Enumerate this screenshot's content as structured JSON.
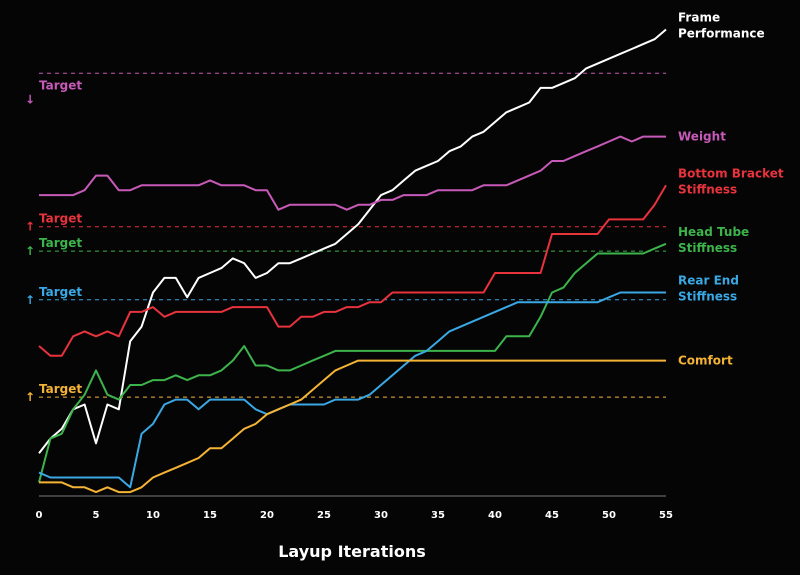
{
  "chart_data": {
    "type": "line",
    "title": "",
    "xlabel": "Layup Iterations",
    "ylabel": "",
    "xlim": [
      0,
      55
    ],
    "ylim": [
      0,
      100
    ],
    "x_ticks": [
      0,
      5,
      10,
      15,
      20,
      25,
      30,
      35,
      40,
      45,
      50,
      55
    ],
    "grid": false,
    "legend": "series labels at right end of each line",
    "targets": [
      {
        "series": "Weight",
        "label": "Target",
        "arrow": "↓",
        "y": 87,
        "color": "#c75ab8"
      },
      {
        "series": "Bottom Bracket Stiffness",
        "label": "Target",
        "arrow": "↑",
        "y": 55.5,
        "color": "#e8323c"
      },
      {
        "series": "Head Tube Stiffness",
        "label": "Target",
        "arrow": "↑",
        "y": 50.5,
        "color": "#3cb44b"
      },
      {
        "series": "Rear End Stiffness",
        "label": "Target",
        "arrow": "↑",
        "y": 40.5,
        "color": "#3aa8e4"
      },
      {
        "series": "Comfort",
        "label": "Target",
        "arrow": "↑",
        "y": 20.5,
        "color": "#f5b335"
      }
    ],
    "series": [
      {
        "name": "Frame Performance",
        "label_lines": [
          "Frame",
          "Performance"
        ],
        "color": "#ffffff",
        "values": [
          9,
          12,
          14,
          18,
          19,
          11,
          19,
          18,
          32,
          35,
          42,
          45,
          45,
          41,
          45,
          46,
          47,
          49,
          48,
          45,
          46,
          48,
          48,
          49,
          50,
          51,
          52,
          54,
          56,
          59,
          62,
          63,
          65,
          67,
          68,
          69,
          71,
          72,
          74,
          75,
          77,
          79,
          80,
          81,
          84,
          84,
          85,
          86,
          88,
          89,
          90,
          91,
          92,
          93,
          94,
          96
        ]
      },
      {
        "name": "Weight",
        "label_lines": [
          "Weight"
        ],
        "color": "#c75ab8",
        "values": [
          62,
          62,
          62,
          62,
          63,
          66,
          66,
          63,
          63,
          64,
          64,
          64,
          64,
          64,
          64,
          65,
          64,
          64,
          64,
          63,
          63,
          59,
          60,
          60,
          60,
          60,
          60,
          59,
          60,
          60,
          61,
          61,
          62,
          62,
          62,
          63,
          63,
          63,
          63,
          64,
          64,
          64,
          65,
          66,
          67,
          69,
          69,
          70,
          71,
          72,
          73,
          74,
          73,
          74,
          74,
          74
        ]
      },
      {
        "name": "Bottom Bracket Stiffness",
        "label_lines": [
          "Bottom Bracket",
          "Stiffness"
        ],
        "color": "#e8323c",
        "values": [
          31,
          29,
          29,
          33,
          34,
          33,
          34,
          33,
          38,
          38,
          39,
          37,
          38,
          38,
          38,
          38,
          38,
          39,
          39,
          39,
          39,
          35,
          35,
          37,
          37,
          38,
          38,
          39,
          39,
          40,
          40,
          42,
          42,
          42,
          42,
          42,
          42,
          42,
          42,
          42,
          46,
          46,
          46,
          46,
          46,
          54,
          54,
          54,
          54,
          54,
          57,
          57,
          57,
          57,
          60,
          64
        ]
      },
      {
        "name": "Head Tube Stiffness",
        "label_lines": [
          "Head Tube",
          "Stiffness"
        ],
        "color": "#3cb44b",
        "values": [
          3,
          12,
          13,
          18,
          21,
          26,
          21,
          20,
          23,
          23,
          24,
          24,
          25,
          24,
          25,
          25,
          26,
          28,
          31,
          27,
          27,
          26,
          26,
          27,
          28,
          29,
          30,
          30,
          30,
          30,
          30,
          30,
          30,
          30,
          30,
          30,
          30,
          30,
          30,
          30,
          30,
          33,
          33,
          33,
          37,
          42,
          43,
          46,
          48,
          50,
          50,
          50,
          50,
          50,
          51,
          52
        ]
      },
      {
        "name": "Rear End Stiffness",
        "label_lines": [
          "Rear End",
          "Stiffness"
        ],
        "color": "#3aa8e4",
        "values": [
          5,
          4,
          4,
          4,
          4,
          4,
          4,
          4,
          2,
          13,
          15,
          19,
          20,
          20,
          18,
          20,
          20,
          20,
          20,
          18,
          17,
          18,
          19,
          19,
          19,
          19,
          20,
          20,
          20,
          21,
          23,
          25,
          27,
          29,
          30,
          32,
          34,
          35,
          36,
          37,
          38,
          39,
          40,
          40,
          40,
          40,
          40,
          40,
          40,
          40,
          41,
          42,
          42,
          42,
          42,
          42
        ]
      },
      {
        "name": "Comfort",
        "label_lines": [
          "Comfort"
        ],
        "color": "#f5b335",
        "values": [
          3,
          3,
          3,
          2,
          2,
          1,
          2,
          1,
          1,
          2,
          4,
          5,
          6,
          7,
          8,
          10,
          10,
          12,
          14,
          15,
          17,
          18,
          19,
          20,
          22,
          24,
          26,
          27,
          28,
          28,
          28,
          28,
          28,
          28,
          28,
          28,
          28,
          28,
          28,
          28,
          28,
          28,
          28,
          28,
          28,
          28,
          28,
          28,
          28,
          28,
          28,
          28,
          28,
          28,
          28,
          28
        ]
      }
    ]
  }
}
